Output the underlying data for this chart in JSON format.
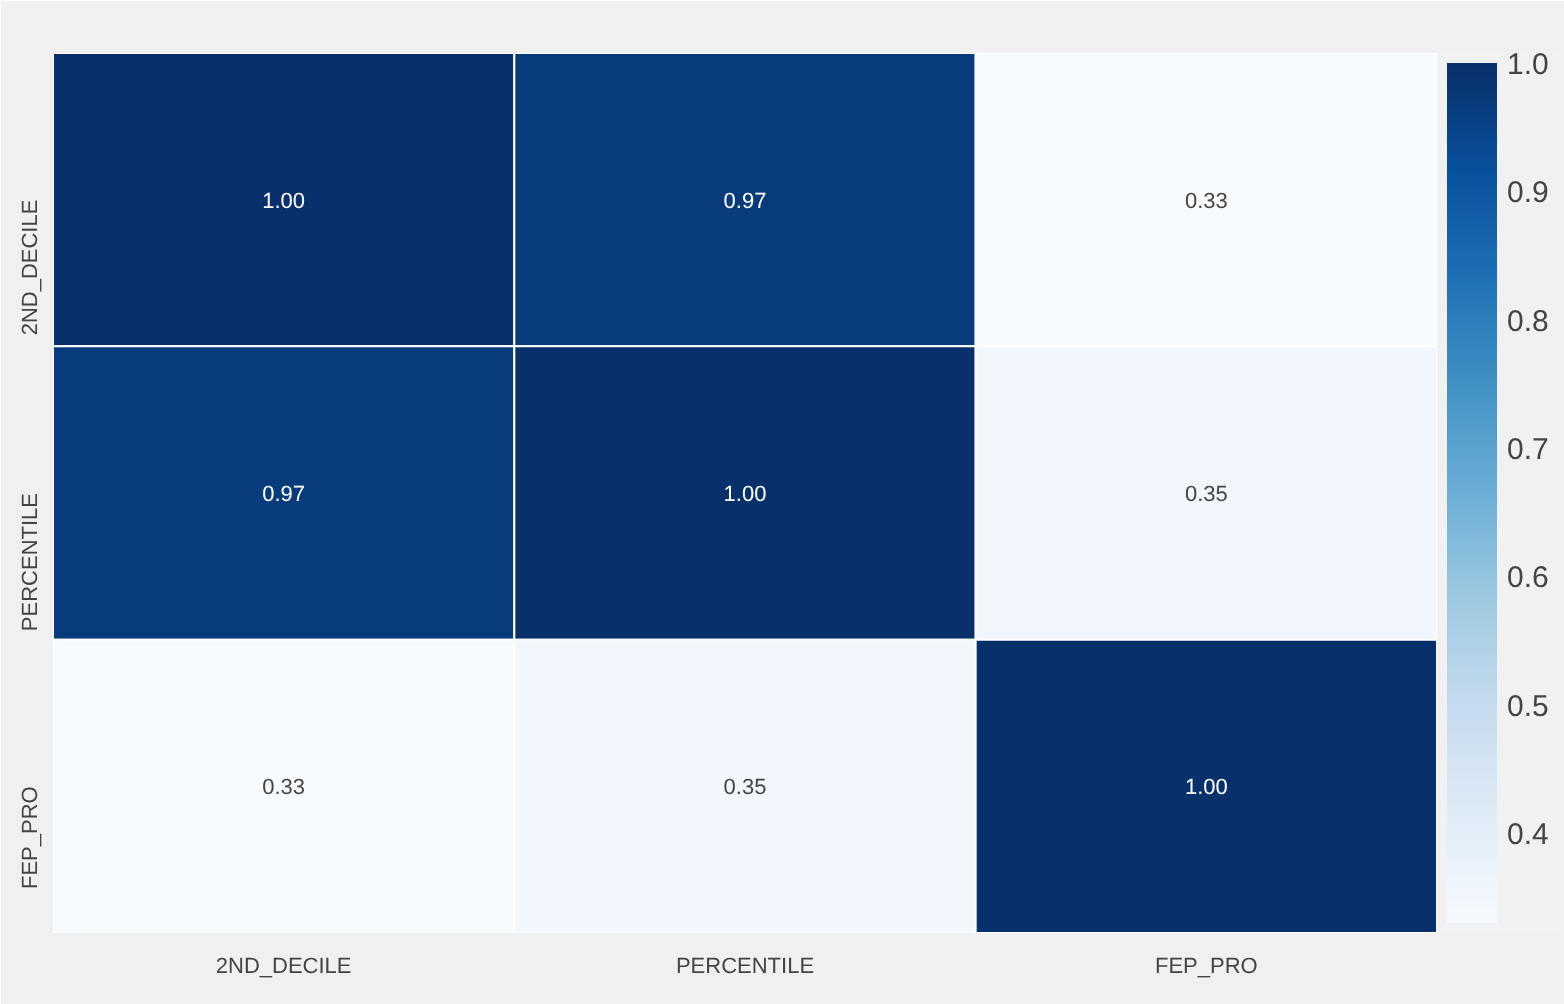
{
  "chart_data": {
    "type": "heatmap",
    "categories": [
      "2ND_DECILE",
      "PERCENTILE",
      "FEP_PRO"
    ],
    "y_categories": [
      "2ND_DECILE",
      "PERCENTILE",
      "FEP_PRO"
    ],
    "cells": [
      [
        1.0,
        0.97,
        0.33
      ],
      [
        0.97,
        1.0,
        0.35
      ],
      [
        0.33,
        0.35,
        1.0
      ]
    ],
    "cell_labels": [
      [
        "1.00",
        "0.97",
        "0.33"
      ],
      [
        "0.97",
        "1.00",
        "0.35"
      ],
      [
        "0.33",
        "0.35",
        "1.00"
      ]
    ],
    "clim": [
      0.33,
      1.0
    ],
    "cticks": [
      0.4,
      0.5,
      0.6,
      0.7,
      0.8,
      0.9,
      {
        "value": 1.0,
        "label": "1.0"
      }
    ]
  }
}
